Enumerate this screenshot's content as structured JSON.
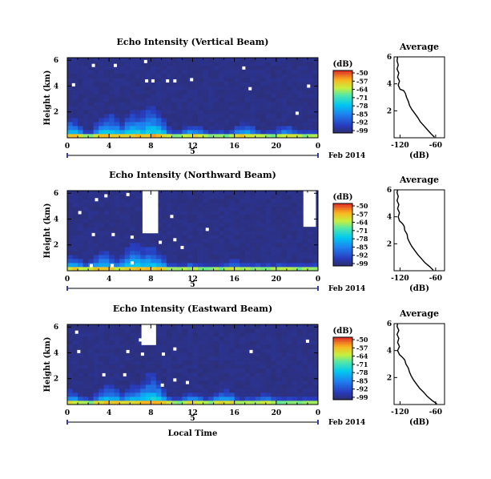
{
  "chart_data": [
    {
      "type": "heatmap",
      "title": "Echo Intensity (Vertical Beam)",
      "ylabel": "Height (km)",
      "y_ticks": [
        "2",
        "4",
        "6"
      ],
      "x_ticks": [
        "0",
        "4",
        "8",
        "12",
        "16",
        "20",
        "0"
      ],
      "xlim": [
        0,
        24
      ],
      "ylim": [
        0,
        6.2
      ],
      "day": "5",
      "date_label": "Feb 2014",
      "colorbar": {
        "title": "(dB)",
        "range": [
          -96,
          -50
        ],
        "labels": [
          "-50",
          "-57",
          "-64",
          "-71",
          "-78",
          "-85",
          "-92",
          "-99"
        ]
      },
      "profile": {
        "title": "Average",
        "xlabel": "(dB)",
        "x_ticks": [
          "-120",
          "-60"
        ],
        "y_ticks": [
          "2",
          "4",
          "6"
        ],
        "xlim": [
          -130,
          -45
        ],
        "ylim": [
          0,
          6
        ],
        "points": [
          [
            -62,
            0.05
          ],
          [
            -68,
            0.3
          ],
          [
            -74,
            0.6
          ],
          [
            -80,
            0.9
          ],
          [
            -86,
            1.2
          ],
          [
            -90,
            1.5
          ],
          [
            -95,
            1.8
          ],
          [
            -100,
            2.1
          ],
          [
            -104,
            2.4
          ],
          [
            -106,
            2.7
          ],
          [
            -109,
            3.0
          ],
          [
            -111,
            3.3
          ],
          [
            -114,
            3.5
          ],
          [
            -120,
            3.6
          ],
          [
            -123,
            3.9
          ],
          [
            -121,
            4.2
          ],
          [
            -124,
            4.5
          ],
          [
            -122,
            4.8
          ],
          [
            -125,
            5.1
          ],
          [
            -123,
            5.4
          ],
          [
            -125,
            5.7
          ],
          [
            -124,
            6.0
          ]
        ]
      },
      "blobs": [
        [
          0.2,
          1.6
        ],
        [
          4,
          2.0
        ],
        [
          6.5,
          2.2
        ],
        [
          8,
          2.6
        ],
        [
          12,
          1.1
        ],
        [
          17,
          1.2
        ],
        [
          21,
          1.0
        ]
      ],
      "holes": [
        [
          2.5,
          5.6
        ],
        [
          4.6,
          5.6
        ],
        [
          7.5,
          5.9
        ],
        [
          7.6,
          4.4
        ],
        [
          8.2,
          4.4
        ],
        [
          9.6,
          4.4
        ],
        [
          10.3,
          4.4
        ],
        [
          11.9,
          4.5
        ],
        [
          16.9,
          5.4
        ],
        [
          17.5,
          3.8
        ],
        [
          22.0,
          1.9
        ],
        [
          23.1,
          4.0
        ],
        [
          0.6,
          4.1
        ]
      ]
    },
    {
      "type": "heatmap",
      "title": "Echo Intensity (Northward Beam)",
      "ylabel": "Height (km)",
      "y_ticks": [
        "2",
        "4",
        "6"
      ],
      "x_ticks": [
        "0",
        "4",
        "8",
        "12",
        "16",
        "20",
        "0"
      ],
      "xlim": [
        0,
        24
      ],
      "ylim": [
        0,
        6.2
      ],
      "day": "5",
      "date_label": "Feb 2014",
      "colorbar": {
        "title": "(dB)",
        "range": [
          -96,
          -50
        ],
        "labels": [
          "-50",
          "-57",
          "-64",
          "-71",
          "-78",
          "-85",
          "-92",
          "-99"
        ]
      },
      "profile": {
        "title": "Average",
        "xlabel": "(dB)",
        "x_ticks": [
          "-120",
          "-60"
        ],
        "y_ticks": [
          "2",
          "4",
          "6"
        ],
        "xlim": [
          -130,
          -45
        ],
        "ylim": [
          0,
          6
        ],
        "points": [
          [
            -64,
            0.05
          ],
          [
            -70,
            0.3
          ],
          [
            -78,
            0.6
          ],
          [
            -84,
            0.9
          ],
          [
            -90,
            1.2
          ],
          [
            -95,
            1.5
          ],
          [
            -100,
            1.8
          ],
          [
            -104,
            2.1
          ],
          [
            -107,
            2.4
          ],
          [
            -108,
            2.7
          ],
          [
            -112,
            3.0
          ],
          [
            -113,
            3.3
          ],
          [
            -116,
            3.5
          ],
          [
            -121,
            3.7
          ],
          [
            -123,
            4.0
          ],
          [
            -121,
            4.3
          ],
          [
            -124,
            4.6
          ],
          [
            -122,
            4.9
          ],
          [
            -125,
            5.2
          ],
          [
            -123,
            5.5
          ],
          [
            -125,
            5.8
          ],
          [
            -124,
            6.0
          ]
        ]
      },
      "blobs": [
        [
          0.5,
          1.2
        ],
        [
          3.5,
          1.6
        ],
        [
          6.5,
          2.2
        ],
        [
          8,
          2.0
        ],
        [
          12,
          0.7
        ],
        [
          16,
          0.8
        ],
        [
          20,
          0.6
        ]
      ],
      "holes": [
        [
          2.8,
          5.5
        ],
        [
          3.7,
          5.8
        ],
        [
          5.8,
          5.9
        ],
        [
          1.2,
          4.5
        ],
        [
          10,
          4.2
        ],
        [
          2.5,
          2.8
        ],
        [
          4.4,
          2.8
        ],
        [
          6.2,
          2.6
        ],
        [
          8.9,
          2.2
        ],
        [
          10.3,
          2.4
        ],
        [
          11.0,
          1.8
        ],
        [
          13.4,
          3.2
        ],
        [
          2.3,
          0.4
        ],
        [
          4.3,
          0.4
        ],
        [
          6.2,
          0.6
        ],
        [
          22.8,
          4.6
        ],
        [
          23.0,
          3.8
        ]
      ],
      "gaps": [
        [
          7.2,
          8.7,
          2.9,
          6.2
        ],
        [
          22.6,
          23.8,
          3.4,
          6.2
        ]
      ]
    },
    {
      "type": "heatmap",
      "title": "Echo Intensity (Eastward Beam)",
      "ylabel": "Height (km)",
      "y_ticks": [
        "2",
        "4",
        "6"
      ],
      "x_ticks": [
        "0",
        "4",
        "8",
        "12",
        "16",
        "20",
        "0"
      ],
      "xlabel": "Local Time",
      "xlim": [
        0,
        24
      ],
      "ylim": [
        0,
        6.2
      ],
      "day": "5",
      "date_label": "Feb 2014",
      "colorbar": {
        "title": "(dB)",
        "range": [
          -96,
          -50
        ],
        "labels": [
          "-50",
          "-57",
          "-64",
          "-71",
          "-78",
          "-85",
          "-92",
          "-99"
        ]
      },
      "profile": {
        "title": "Average",
        "xlabel": "(dB)",
        "x_ticks": [
          "-120",
          "-60"
        ],
        "y_ticks": [
          "2",
          "4",
          "6"
        ],
        "xlim": [
          -130,
          -45
        ],
        "ylim": [
          0,
          6
        ],
        "points": [
          [
            -58,
            0.05
          ],
          [
            -66,
            0.3
          ],
          [
            -74,
            0.6
          ],
          [
            -80,
            0.9
          ],
          [
            -87,
            1.2
          ],
          [
            -92,
            1.5
          ],
          [
            -97,
            1.8
          ],
          [
            -101,
            2.1
          ],
          [
            -104,
            2.4
          ],
          [
            -106,
            2.7
          ],
          [
            -110,
            3.0
          ],
          [
            -112,
            3.3
          ],
          [
            -116,
            3.5
          ],
          [
            -121,
            3.7
          ],
          [
            -124,
            4.0
          ],
          [
            -121,
            4.3
          ],
          [
            -124,
            4.6
          ],
          [
            -122,
            4.9
          ],
          [
            -125,
            5.2
          ],
          [
            -122,
            5.5
          ],
          [
            -125,
            5.8
          ],
          [
            -124,
            6.0
          ]
        ]
      },
      "blobs": [
        [
          0.3,
          1.1
        ],
        [
          4,
          1.6
        ],
        [
          6.5,
          1.5
        ],
        [
          8,
          2.4
        ],
        [
          12,
          1.0
        ],
        [
          15,
          1.2
        ],
        [
          19,
          0.9
        ]
      ],
      "holes": [
        [
          0.9,
          5.6
        ],
        [
          1.1,
          4.1
        ],
        [
          5.8,
          4.1
        ],
        [
          7.0,
          5.0
        ],
        [
          7.2,
          3.9
        ],
        [
          9.2,
          3.9
        ],
        [
          10.3,
          4.3
        ],
        [
          17.6,
          4.1
        ],
        [
          3.5,
          2.3
        ],
        [
          5.5,
          2.3
        ],
        [
          10.3,
          1.9
        ],
        [
          11.5,
          1.7
        ],
        [
          9.1,
          1.5
        ],
        [
          23.0,
          4.9
        ]
      ],
      "gaps": [
        [
          7.1,
          8.5,
          4.6,
          6.2
        ]
      ]
    }
  ]
}
